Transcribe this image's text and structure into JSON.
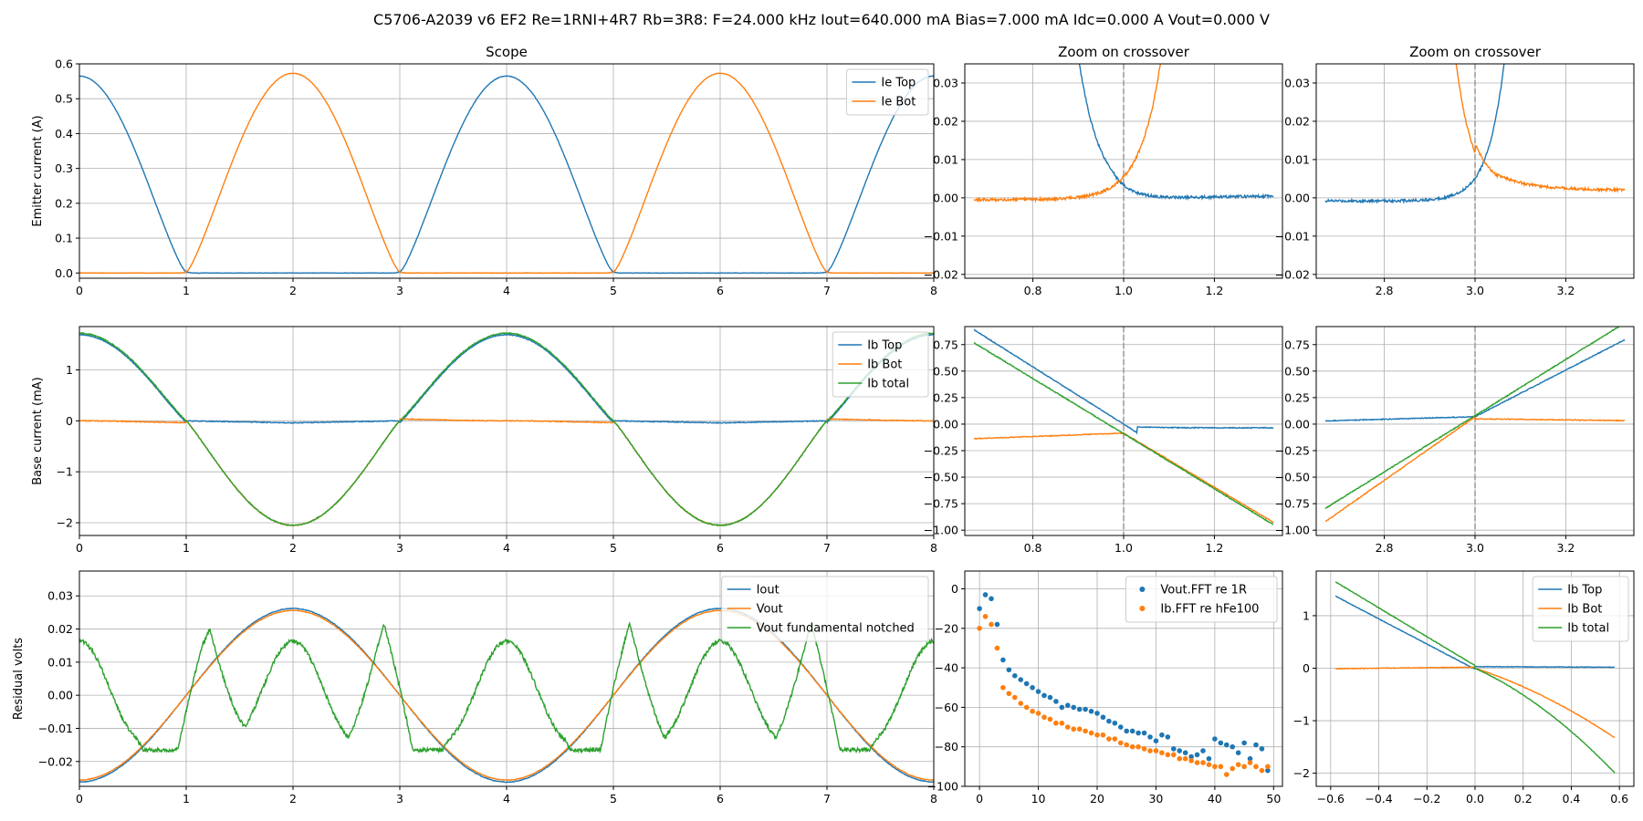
{
  "figure": {
    "suptitle": "C5706-A2039 v6 EF2 Re=1RNI+4R7 Rb=3R8: F=24.000 kHz Iout=640.000 mA Bias=7.000 mA Idc=0.000 A Vout=0.000 V"
  },
  "colors": {
    "blue": "#1f77b4",
    "orange": "#ff7f0e",
    "green": "#2ca02c",
    "grid": "#b0b0b0",
    "vline": "#999999"
  },
  "chart_data": [
    {
      "id": "scope-emitter",
      "type": "line",
      "title": "Scope",
      "xlabel": "",
      "ylabel": "Emitter current (A)",
      "xlim": [
        0,
        8
      ],
      "ylim": [
        -0.015,
        0.6
      ],
      "xticks": [
        0,
        1,
        2,
        3,
        4,
        5,
        6,
        7,
        8
      ],
      "yticks": [
        0.0,
        0.1,
        0.2,
        0.3,
        0.4,
        0.5,
        0.6
      ],
      "grid": true,
      "legend": "top-right",
      "series": [
        {
          "name": "Ie Top",
          "color": "blue",
          "fn": "ieTop"
        },
        {
          "name": "Ie Bot",
          "color": "orange",
          "fn": "ieBot"
        }
      ]
    },
    {
      "id": "zoom-emitter-1",
      "type": "line",
      "title": "Zoom on crossover",
      "xlabel": "",
      "ylabel": "",
      "xlim": [
        0.65,
        1.35
      ],
      "ylim": [
        -0.021,
        0.035
      ],
      "xticks": [
        0.8,
        1.0,
        1.2
      ],
      "yticks": [
        -0.02,
        -0.01,
        0.0,
        0.01,
        0.02,
        0.03
      ],
      "vline": 1.0,
      "grid": true,
      "series": [
        {
          "name": "Ie Top",
          "color": "blue",
          "fn": "zIeTop1",
          "x_range": [
            0.67,
            1.33
          ]
        },
        {
          "name": "Ie Bot",
          "color": "orange",
          "fn": "zIeBot1",
          "x_range": [
            0.67,
            1.33
          ]
        }
      ]
    },
    {
      "id": "zoom-emitter-3",
      "type": "line",
      "title": "Zoom on crossover",
      "xlabel": "",
      "ylabel": "",
      "xlim": [
        2.65,
        3.35
      ],
      "ylim": [
        -0.021,
        0.035
      ],
      "xticks": [
        2.8,
        3.0,
        3.2
      ],
      "yticks": [
        -0.02,
        -0.01,
        0.0,
        0.01,
        0.02,
        0.03
      ],
      "vline": 3.0,
      "grid": true,
      "series": [
        {
          "name": "Ie Top",
          "color": "blue",
          "fn": "zIeTop3",
          "x_range": [
            2.67,
            3.33
          ]
        },
        {
          "name": "Ie Bot",
          "color": "orange",
          "fn": "zIeBot3",
          "x_range": [
            2.67,
            3.33
          ]
        }
      ]
    },
    {
      "id": "scope-base",
      "type": "line",
      "title": "",
      "xlabel": "",
      "ylabel": "Base current (mA)",
      "xlim": [
        0,
        8
      ],
      "ylim": [
        -2.25,
        1.85
      ],
      "xticks": [
        0,
        1,
        2,
        3,
        4,
        5,
        6,
        7,
        8
      ],
      "yticks": [
        -2,
        -1,
        0,
        1
      ],
      "grid": true,
      "legend": "top-right",
      "series": [
        {
          "name": "Ib Top",
          "color": "blue",
          "fn": "ibTop"
        },
        {
          "name": "Ib Bot",
          "color": "orange",
          "fn": "ibBot"
        },
        {
          "name": "Ib total",
          "color": "green",
          "fn": "ibTot"
        }
      ]
    },
    {
      "id": "zoom-base-1",
      "type": "line",
      "title": "",
      "xlabel": "",
      "ylabel": "",
      "xlim": [
        0.65,
        1.35
      ],
      "ylim": [
        -1.05,
        0.92
      ],
      "xticks": [
        0.8,
        1.0,
        1.2
      ],
      "yticks": [
        -1.0,
        -0.75,
        -0.5,
        -0.25,
        0.0,
        0.25,
        0.5,
        0.75
      ],
      "vline": 1.0,
      "grid": true,
      "series": [
        {
          "name": "Ib Top",
          "color": "blue",
          "fn": "zIbTop1",
          "x_range": [
            0.67,
            1.33
          ]
        },
        {
          "name": "Ib Bot",
          "color": "orange",
          "fn": "zIbBot1",
          "x_range": [
            0.67,
            1.33
          ]
        },
        {
          "name": "Ib total",
          "color": "green",
          "fn": "zIbTot1",
          "x_range": [
            0.67,
            1.33
          ]
        }
      ]
    },
    {
      "id": "zoom-base-3",
      "type": "line",
      "title": "",
      "xlabel": "",
      "ylabel": "",
      "xlim": [
        2.65,
        3.35
      ],
      "ylim": [
        -1.05,
        0.92
      ],
      "xticks": [
        2.8,
        3.0,
        3.2
      ],
      "yticks": [
        -1.0,
        -0.75,
        -0.5,
        -0.25,
        0.0,
        0.25,
        0.5,
        0.75
      ],
      "vline": 3.0,
      "grid": true,
      "series": [
        {
          "name": "Ib Top",
          "color": "blue",
          "fn": "zIbTop3",
          "x_range": [
            2.67,
            3.33
          ]
        },
        {
          "name": "Ib Bot",
          "color": "orange",
          "fn": "zIbBot3",
          "x_range": [
            2.67,
            3.33
          ]
        },
        {
          "name": "Ib total",
          "color": "green",
          "fn": "zIbTot3",
          "x_range": [
            2.67,
            3.33
          ]
        }
      ]
    },
    {
      "id": "scope-residual",
      "type": "line",
      "title": "",
      "xlabel": "",
      "ylabel": "Residual volts",
      "xlim": [
        0,
        8
      ],
      "ylim": [
        -0.0275,
        0.0375
      ],
      "xticks": [
        0,
        1,
        2,
        3,
        4,
        5,
        6,
        7,
        8
      ],
      "yticks": [
        -0.02,
        -0.01,
        0.0,
        0.01,
        0.02,
        0.03
      ],
      "grid": true,
      "legend": "top-right",
      "series": [
        {
          "name": "Iout",
          "color": "blue",
          "fn": "iout"
        },
        {
          "name": "Vout",
          "color": "orange",
          "fn": "vout"
        },
        {
          "name": "Vout fundamental notched",
          "color": "green",
          "fn": "notched"
        }
      ]
    },
    {
      "id": "fft",
      "type": "scatter",
      "title": "",
      "xlabel": "",
      "ylabel": "",
      "xlim": [
        -2.5,
        51.5
      ],
      "ylim": [
        -100,
        9
      ],
      "xticks": [
        0,
        10,
        20,
        30,
        40,
        50
      ],
      "yticks": [
        -100,
        -80,
        -60,
        -40,
        -20,
        0
      ],
      "grid": true,
      "legend": "top-right",
      "series": [
        {
          "name": "Vout.FFT re 1R",
          "color": "blue",
          "x": [
            0,
            1,
            2,
            3,
            4,
            5,
            6,
            7,
            8,
            9,
            10,
            11,
            12,
            13,
            14,
            15,
            16,
            17,
            18,
            19,
            20,
            21,
            22,
            23,
            24,
            25,
            26,
            27,
            28,
            29,
            30,
            31,
            32,
            33,
            34,
            35,
            36,
            37,
            38,
            39,
            40,
            41,
            42,
            43,
            44,
            45,
            46,
            47,
            48,
            49
          ],
          "values": [
            -10,
            -3,
            -5,
            -18,
            -36,
            -41,
            -44,
            -46,
            -48,
            -50,
            -52,
            -54,
            -55,
            -57,
            -60,
            -59,
            -60,
            -61,
            -61,
            -62,
            -63,
            -65,
            -67,
            -68,
            -70,
            -72,
            -72,
            -73,
            -73,
            -75,
            -77,
            -74,
            -75,
            -81,
            -82,
            -83,
            -85,
            -84,
            -82,
            -86,
            -76,
            -78,
            -79,
            -80,
            -83,
            -78,
            -86,
            -79,
            -81,
            -92
          ]
        },
        {
          "name": "Ib.FFT re hFe100",
          "color": "orange",
          "x": [
            0,
            1,
            2,
            3,
            4,
            5,
            6,
            7,
            8,
            9,
            10,
            11,
            12,
            13,
            14,
            15,
            16,
            17,
            18,
            19,
            20,
            21,
            22,
            23,
            24,
            25,
            26,
            27,
            28,
            29,
            30,
            31,
            32,
            33,
            34,
            35,
            36,
            37,
            38,
            39,
            40,
            41,
            42,
            43,
            44,
            45,
            46,
            47,
            48,
            49
          ],
          "values": [
            -20,
            -14,
            -18,
            -30,
            -50,
            -53,
            -55,
            -58,
            -60,
            -62,
            -63,
            -65,
            -66,
            -68,
            -68,
            -70,
            -71,
            -71,
            -72,
            -73,
            -74,
            -74,
            -76,
            -76,
            -78,
            -79,
            -80,
            -80,
            -81,
            -82,
            -82,
            -83,
            -84,
            -84,
            -86,
            -86,
            -87,
            -88,
            -88,
            -89,
            -90,
            -90,
            -94,
            -91,
            -89,
            -90,
            -88,
            -90,
            -92,
            -90
          ]
        }
      ]
    },
    {
      "id": "ib-vs-x",
      "type": "line",
      "title": "",
      "xlabel": "",
      "ylabel": "",
      "xlim": [
        -0.66,
        0.66
      ],
      "ylim": [
        -2.25,
        1.85
      ],
      "xticks": [
        -0.6,
        -0.4,
        -0.2,
        0.0,
        0.2,
        0.4,
        0.6
      ],
      "yticks": [
        -2,
        -1,
        0,
        1
      ],
      "grid": true,
      "legend": "top-right",
      "series": [
        {
          "name": "Ib Top",
          "color": "blue",
          "fn": "xyTop",
          "x_range": [
            -0.58,
            0.58
          ]
        },
        {
          "name": "Ib Bot",
          "color": "orange",
          "fn": "xyBot",
          "x_range": [
            -0.58,
            0.58
          ]
        },
        {
          "name": "Ib total",
          "color": "green",
          "fn": "xyTot",
          "x_range": [
            -0.58,
            0.58
          ]
        }
      ]
    }
  ]
}
